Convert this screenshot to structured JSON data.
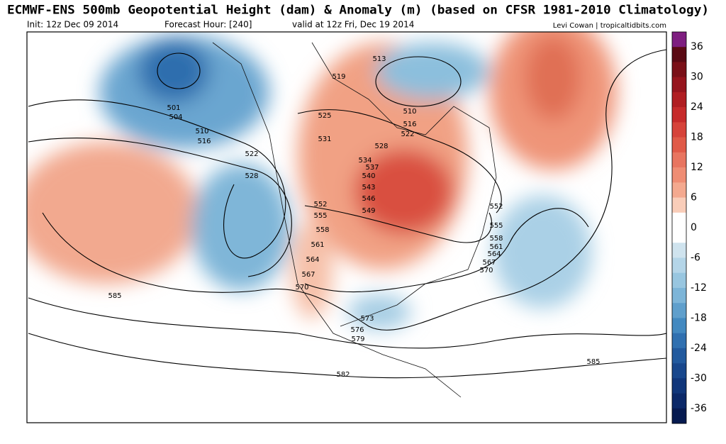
{
  "header": {
    "title": "ECMWF-ENS 500mb Geopotential Height (dam) & Anomaly (m) (based on CFSR 1981-2010 Climatology)",
    "init": "Init: 12z Dec 09 2014",
    "forecast": "Forecast Hour: [240]",
    "valid": "valid at 12z Fri, Dec 19 2014",
    "credit": "Levi Cowan | tropicaltidbits.com"
  },
  "colorbar": {
    "colors": [
      "#7e1e80",
      "#5a0a14",
      "#7a1018",
      "#96151d",
      "#b01e22",
      "#c62b2b",
      "#d6433a",
      "#e05a48",
      "#e87560",
      "#ef8d74",
      "#f4a98f",
      "#f9cdb9",
      "#ffffff",
      "#ffffff",
      "#cfe3ee",
      "#b4d5e8",
      "#98c6e0",
      "#7db5d8",
      "#5f9fcc",
      "#4389c0",
      "#3070b0",
      "#225a9e",
      "#18478c",
      "#10367a",
      "#0b2868",
      "#061a50"
    ],
    "labels": [
      36,
      30,
      24,
      18,
      12,
      6,
      0,
      -6,
      -12,
      -18,
      -24,
      -30,
      -36
    ]
  },
  "contour_labels": [
    501,
    504,
    510,
    516,
    522,
    528,
    519,
    525,
    531,
    513,
    510,
    516,
    522,
    528,
    534,
    537,
    540,
    543,
    546,
    549,
    552,
    555,
    558,
    561,
    564,
    567,
    570,
    552,
    555,
    558,
    561,
    564,
    567,
    570,
    573,
    576,
    579,
    582,
    585,
    585
  ]
}
